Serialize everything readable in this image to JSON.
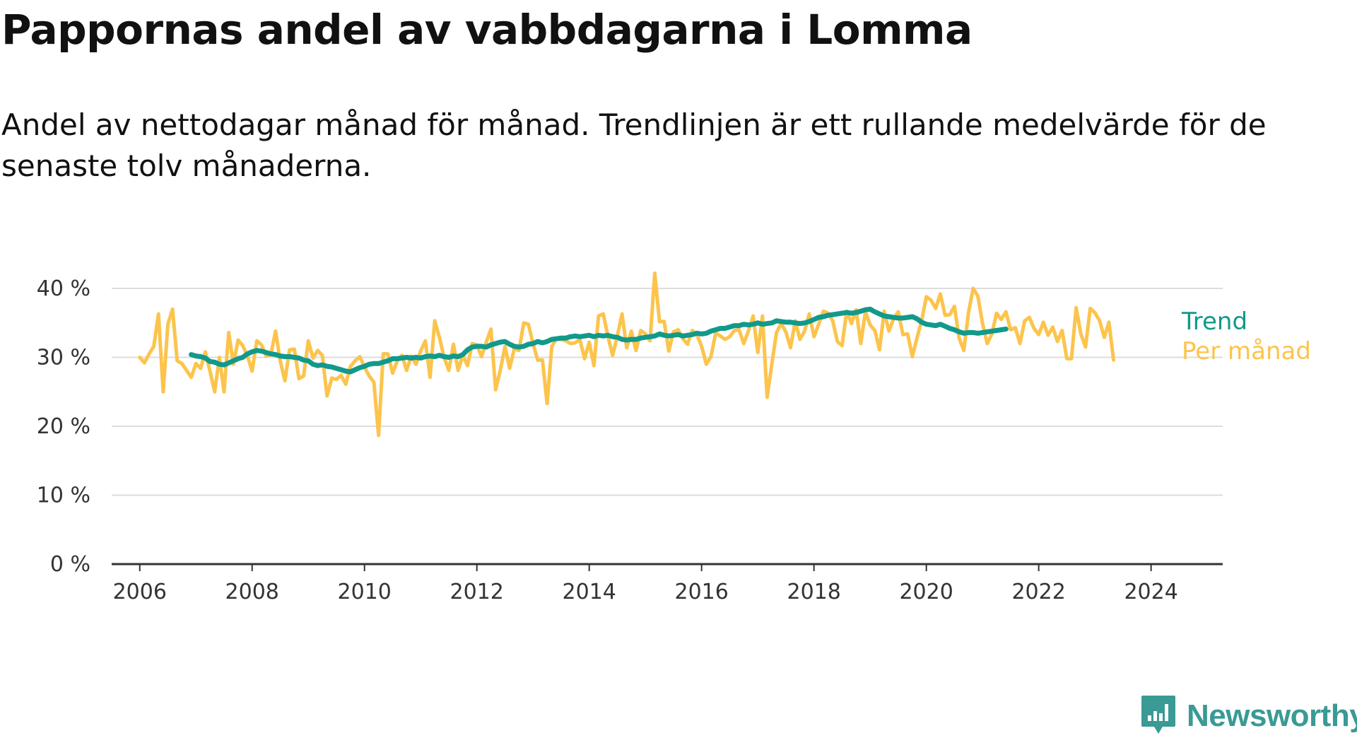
{
  "title": "Pappornas andel av vabbdagarna i Lomma",
  "subtitle": "Andel av nettodagar månad för månad. Trendlinjen är ett rullande medelvärde för de senaste tolv månaderna.",
  "brand": {
    "name": "Newsworthy",
    "icon": "newsworthy-logo-icon",
    "color": "#3a9a94"
  },
  "chart_data": {
    "type": "line",
    "xlim": [
      "2005-07",
      "2025-04"
    ],
    "ylim": [
      0,
      40
    ],
    "y_ticks": [
      0,
      10,
      20,
      30,
      40
    ],
    "y_tick_labels": [
      "0 %",
      "10 %",
      "20 %",
      "30 %",
      "40 %"
    ],
    "x_ticks": [
      "2006-01",
      "2008-01",
      "2010-01",
      "2012-01",
      "2014-01",
      "2016-01",
      "2018-01",
      "2020-01",
      "2022-01",
      "2024-01"
    ],
    "x_tick_labels": [
      "2006",
      "2008",
      "2010",
      "2012",
      "2014",
      "2016",
      "2018",
      "2020",
      "2022",
      "2024"
    ],
    "grid": true,
    "legend": "direct labels at line ends",
    "series": [
      {
        "name": "Per månad",
        "color": "#fcc44c",
        "start": "2006-01",
        "values": [
          30.0,
          29.2,
          30.5,
          31.6,
          36.3,
          25.0,
          34.8,
          37.0,
          29.5,
          29.1,
          28.1,
          27.1,
          29.1,
          28.4,
          30.8,
          28.0,
          25.0,
          30.0,
          25.0,
          33.6,
          29.0,
          32.5,
          31.7,
          30.2,
          28.0,
          32.4,
          31.8,
          30.2,
          30.4,
          33.8,
          29.5,
          26.6,
          31.1,
          31.2,
          26.9,
          27.3,
          32.4,
          29.9,
          31.0,
          30.3,
          24.4,
          27.0,
          26.8,
          27.4,
          26.1,
          28.7,
          29.5,
          30.1,
          28.6,
          27.3,
          26.4,
          18.7,
          30.5,
          30.5,
          27.7,
          29.5,
          30.3,
          28.1,
          30.2,
          29.0,
          30.9,
          32.4,
          27.1,
          35.3,
          32.9,
          30.0,
          28.1,
          31.9,
          28.1,
          30.3,
          28.8,
          32.0,
          31.8,
          30.1,
          32.2,
          34.1,
          25.3,
          28.1,
          31.6,
          28.4,
          31.3,
          31.0,
          35.0,
          34.8,
          32.0,
          29.6,
          29.6,
          23.3,
          31.6,
          32.7,
          32.6,
          32.4,
          32.0,
          32.1,
          32.6,
          29.8,
          32.2,
          28.8,
          36.0,
          36.3,
          33.0,
          30.3,
          33.1,
          36.3,
          31.4,
          33.8,
          31.0,
          33.9,
          33.4,
          32.4,
          42.2,
          35.2,
          35.2,
          30.9,
          33.7,
          34.0,
          32.7,
          31.9,
          33.9,
          33.3,
          31.6,
          29.0,
          30.1,
          33.5,
          33.1,
          32.6,
          33.0,
          33.9,
          34.0,
          32.0,
          33.8,
          36.0,
          30.7,
          36.0,
          24.2,
          29.1,
          33.6,
          34.9,
          33.7,
          31.4,
          35.3,
          32.6,
          33.8,
          36.3,
          33.0,
          34.8,
          36.7,
          36.4,
          35.3,
          32.3,
          31.7,
          36.7,
          34.9,
          36.9,
          32.0,
          36.6,
          34.7,
          33.9,
          31.1,
          36.7,
          33.8,
          35.6,
          36.6,
          33.3,
          33.4,
          30.1,
          32.8,
          35.3,
          38.8,
          38.3,
          37.1,
          39.2,
          36.1,
          36.2,
          37.4,
          32.8,
          31.0,
          36.5,
          40.0,
          38.9,
          34.9,
          32.0,
          33.4,
          36.4,
          35.5,
          36.6,
          34.0,
          34.3,
          32.0,
          35.3,
          35.8,
          34.2,
          33.3,
          35.1,
          33.2,
          34.4,
          32.3,
          33.9,
          29.8,
          29.8,
          37.2,
          33.4,
          31.5,
          37.1,
          36.5,
          35.3,
          32.9,
          35.1,
          29.6
        ]
      },
      {
        "name": "Trend",
        "color": "#11998b",
        "start": "2006-12",
        "values": [
          30.4,
          30.2,
          30.1,
          29.9,
          29.4,
          29.3,
          29.0,
          28.9,
          29.2,
          29.5,
          29.8,
          30.0,
          30.5,
          30.8,
          31.0,
          30.9,
          30.7,
          30.5,
          30.4,
          30.2,
          30.1,
          30.1,
          30.0,
          29.9,
          29.6,
          29.5,
          29.0,
          28.8,
          28.9,
          28.7,
          28.6,
          28.4,
          28.2,
          28.0,
          27.9,
          28.2,
          28.5,
          28.7,
          29.0,
          29.1,
          29.1,
          29.3,
          29.5,
          29.8,
          29.8,
          29.9,
          30.0,
          29.9,
          30.0,
          29.9,
          30.1,
          30.2,
          30.1,
          30.3,
          30.1,
          30.0,
          30.2,
          30.1,
          30.4,
          31.1,
          31.5,
          31.6,
          31.6,
          31.5,
          31.8,
          32.0,
          32.2,
          32.3,
          31.9,
          31.6,
          31.5,
          31.6,
          31.9,
          32.0,
          32.3,
          32.1,
          32.3,
          32.6,
          32.7,
          32.8,
          32.8,
          33.0,
          33.1,
          33.0,
          33.1,
          33.2,
          33.0,
          33.2,
          33.1,
          33.2,
          33.0,
          32.9,
          32.6,
          32.5,
          32.6,
          32.6,
          32.8,
          32.9,
          33.0,
          33.1,
          33.4,
          33.2,
          33.1,
          33.2,
          33.3,
          33.1,
          33.2,
          33.3,
          33.5,
          33.4,
          33.5,
          33.8,
          34.0,
          34.2,
          34.2,
          34.4,
          34.6,
          34.6,
          34.8,
          34.7,
          34.8,
          35.0,
          34.8,
          34.9,
          35.0,
          35.3,
          35.2,
          35.1,
          35.1,
          35.0,
          34.9,
          35.0,
          35.2,
          35.5,
          35.8,
          35.9,
          36.1,
          36.2,
          36.3,
          36.4,
          36.5,
          36.4,
          36.5,
          36.7,
          36.9,
          37.0,
          36.6,
          36.3,
          36.0,
          35.9,
          35.8,
          35.7,
          35.7,
          35.8,
          35.9,
          35.6,
          35.1,
          34.8,
          34.7,
          34.6,
          34.8,
          34.5,
          34.2,
          34.0,
          33.7,
          33.5,
          33.6,
          33.6,
          33.5,
          33.6,
          33.7,
          33.8,
          33.9,
          34.0,
          34.1
        ]
      }
    ]
  }
}
